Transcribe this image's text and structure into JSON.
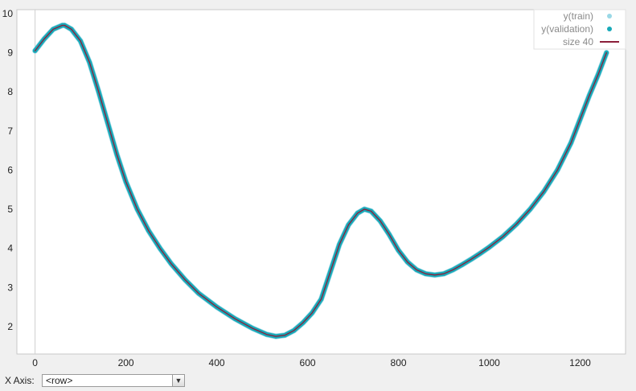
{
  "chart_data": {
    "type": "scatter",
    "xlim": [
      -40,
      1300
    ],
    "ylim": [
      1.3,
      10.1
    ],
    "x_ticks": [
      0,
      200,
      400,
      600,
      800,
      1000,
      1200
    ],
    "y_ticks": [
      2,
      3,
      4,
      5,
      6,
      7,
      8,
      9,
      10
    ],
    "grid": false,
    "legend_placement": "top-right",
    "series": [
      {
        "name": "y(train)",
        "kind": "points",
        "color": "#9ad8e6",
        "x": [
          0,
          20,
          40,
          60,
          65,
          80,
          100,
          120,
          140,
          160,
          180,
          200,
          225,
          250,
          275,
          300,
          330,
          360,
          400,
          440,
          480,
          510,
          530,
          550,
          570,
          590,
          610,
          630,
          650,
          670,
          690,
          710,
          725,
          740,
          760,
          780,
          800,
          820,
          840,
          860,
          880,
          900,
          920,
          940,
          960,
          980,
          1000,
          1030,
          1060,
          1090,
          1120,
          1150,
          1180,
          1200,
          1220,
          1240,
          1258
        ],
        "y": [
          9.05,
          9.35,
          9.6,
          9.7,
          9.7,
          9.6,
          9.3,
          8.75,
          8.0,
          7.2,
          6.4,
          5.7,
          5.0,
          4.45,
          4.0,
          3.6,
          3.2,
          2.85,
          2.5,
          2.2,
          1.95,
          1.8,
          1.75,
          1.78,
          1.9,
          2.1,
          2.35,
          2.7,
          3.4,
          4.1,
          4.6,
          4.9,
          5.0,
          4.95,
          4.7,
          4.35,
          3.95,
          3.65,
          3.45,
          3.35,
          3.32,
          3.35,
          3.45,
          3.58,
          3.72,
          3.87,
          4.03,
          4.3,
          4.62,
          5.0,
          5.45,
          6.0,
          6.7,
          7.3,
          7.9,
          8.45,
          9.0
        ]
      },
      {
        "name": "y(validation)",
        "kind": "points",
        "color": "#17a9b8",
        "x": [
          0,
          20,
          40,
          60,
          65,
          80,
          100,
          120,
          140,
          160,
          180,
          200,
          225,
          250,
          275,
          300,
          330,
          360,
          400,
          440,
          480,
          510,
          530,
          550,
          570,
          590,
          610,
          630,
          650,
          670,
          690,
          710,
          725,
          740,
          760,
          780,
          800,
          820,
          840,
          860,
          880,
          900,
          920,
          940,
          960,
          980,
          1000,
          1030,
          1060,
          1090,
          1120,
          1150,
          1180,
          1200,
          1220,
          1240,
          1258
        ],
        "y": [
          9.05,
          9.35,
          9.6,
          9.7,
          9.7,
          9.6,
          9.3,
          8.75,
          8.0,
          7.2,
          6.4,
          5.7,
          5.0,
          4.45,
          4.0,
          3.6,
          3.2,
          2.85,
          2.5,
          2.2,
          1.95,
          1.8,
          1.75,
          1.78,
          1.9,
          2.1,
          2.35,
          2.7,
          3.4,
          4.1,
          4.6,
          4.9,
          5.0,
          4.95,
          4.7,
          4.35,
          3.95,
          3.65,
          3.45,
          3.35,
          3.32,
          3.35,
          3.45,
          3.58,
          3.72,
          3.87,
          4.03,
          4.3,
          4.62,
          5.0,
          5.45,
          6.0,
          6.7,
          7.3,
          7.9,
          8.45,
          9.0
        ]
      },
      {
        "name": "size 40",
        "kind": "line",
        "color": "#8c1f3a",
        "x": [
          0,
          20,
          40,
          60,
          65,
          80,
          100,
          120,
          140,
          160,
          180,
          200,
          225,
          250,
          275,
          300,
          330,
          360,
          400,
          440,
          480,
          510,
          530,
          550,
          570,
          590,
          610,
          630,
          650,
          670,
          690,
          710,
          725,
          740,
          760,
          780,
          800,
          820,
          840,
          860,
          880,
          900,
          920,
          940,
          960,
          980,
          1000,
          1030,
          1060,
          1090,
          1120,
          1150,
          1180,
          1200,
          1220,
          1240,
          1258
        ],
        "y": [
          9.05,
          9.35,
          9.6,
          9.7,
          9.7,
          9.6,
          9.3,
          8.75,
          8.0,
          7.2,
          6.4,
          5.7,
          5.0,
          4.45,
          4.0,
          3.6,
          3.2,
          2.85,
          2.5,
          2.2,
          1.95,
          1.8,
          1.75,
          1.78,
          1.9,
          2.1,
          2.35,
          2.7,
          3.4,
          4.1,
          4.6,
          4.9,
          5.0,
          4.95,
          4.7,
          4.35,
          3.95,
          3.65,
          3.45,
          3.35,
          3.32,
          3.35,
          3.45,
          3.58,
          3.72,
          3.87,
          4.03,
          4.3,
          4.62,
          5.0,
          5.45,
          6.0,
          6.7,
          7.3,
          7.9,
          8.45,
          9.0
        ]
      }
    ]
  },
  "controls": {
    "x_axis_label": "X Axis:",
    "x_axis_value": "<row>"
  }
}
